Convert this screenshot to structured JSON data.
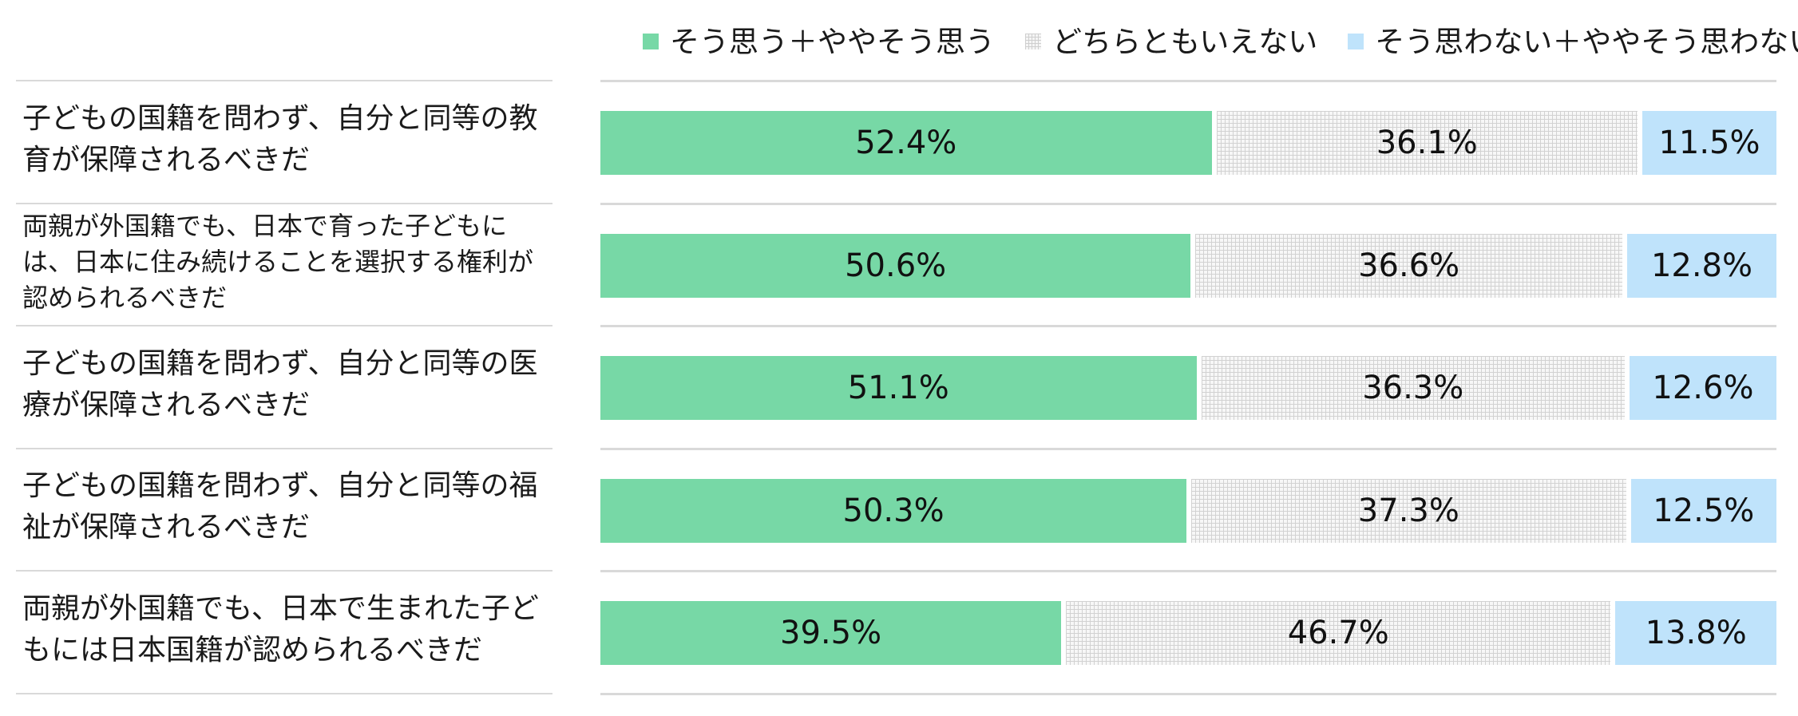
{
  "chart_data": {
    "type": "bar",
    "orientation": "horizontal",
    "stacked": "100%",
    "categories": [
      "子どもの国籍を問わず、自分と同等の教育が保障されるべきだ",
      "両親が外国籍でも、日本で育った子どもには、日本に住み続けることを選択する権利が認められるべきだ",
      "子どもの国籍を問わず、自分と同等の医療が保障されるべきだ",
      "子どもの国籍を問わず、自分と同等の福祉が保障されるべきだ",
      "両親が外国籍でも、日本で生まれた子どもには日本国籍が認められるべきだ"
    ],
    "series": [
      {
        "name": "そう思う＋ややそう思う",
        "values": [
          52.4,
          50.6,
          51.1,
          50.3,
          39.5
        ],
        "labels": [
          "52.4%",
          "50.6%",
          "51.1%",
          "50.3%",
          "39.5%"
        ],
        "color": "#77d8a6"
      },
      {
        "name": "どちらともいえない",
        "values": [
          36.1,
          36.6,
          36.3,
          37.3,
          46.7
        ],
        "labels": [
          "36.1%",
          "36.6%",
          "36.3%",
          "37.3%",
          "46.7%"
        ],
        "color": "#f7f7f7"
      },
      {
        "name": "そう思わない＋ややそう思わない",
        "values": [
          11.5,
          12.8,
          12.6,
          12.5,
          13.8
        ],
        "labels": [
          "11.5%",
          "12.8%",
          "12.6%",
          "12.5%",
          "13.8%"
        ],
        "color": "#bfe3fb"
      }
    ],
    "xlim": [
      0,
      100
    ],
    "legend": "top",
    "grid": false
  },
  "rows": [
    {
      "label_lines": [
        "子どもの国籍を問わず、自分と同等の教",
        "育が保障されるべきだ"
      ]
    },
    {
      "label_lines": [
        "両親が外国籍でも、日本で育った子どもに",
        "は、日本に住み続けることを選択する権利が",
        "認められるべきだ"
      ]
    },
    {
      "label_lines": [
        "子どもの国籍を問わず、自分と同等の医",
        "療が保障されるべきだ"
      ]
    },
    {
      "label_lines": [
        "子どもの国籍を問わず、自分と同等の福",
        "祉が保障されるべきだ"
      ]
    },
    {
      "label_lines": [
        "両親が外国籍でも、日本で生まれた子ど",
        "もには日本国籍が認められるべきだ"
      ]
    }
  ]
}
